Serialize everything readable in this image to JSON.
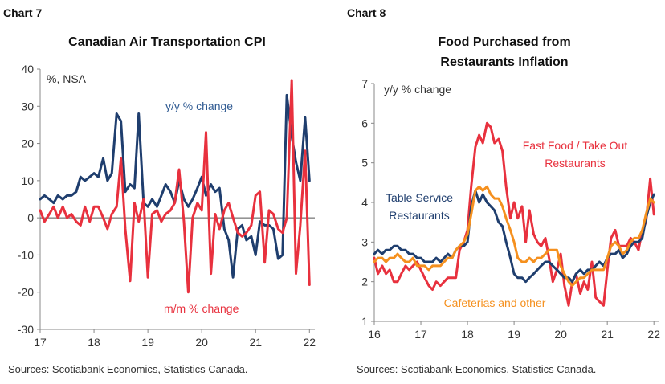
{
  "chart_data": [
    {
      "type": "line",
      "chart_label": "Chart 7",
      "title": "Canadian Air Transportation CPI",
      "unit_label": "%, NSA",
      "source": "Sources: Scotiabank Economics, Statistics Canada.",
      "xlim": [
        2017,
        2022.1
      ],
      "ylim": [
        -30,
        40
      ],
      "x_ticks": [
        {
          "v": 2017,
          "t": "17"
        },
        {
          "v": 2018,
          "t": "18"
        },
        {
          "v": 2019,
          "t": "19"
        },
        {
          "v": 2020,
          "t": "20"
        },
        {
          "v": 2021,
          "t": "21"
        },
        {
          "v": 2022,
          "t": "22"
        }
      ],
      "y_ticks": [
        {
          "v": 40,
          "t": "40"
        },
        {
          "v": 30,
          "t": "30"
        },
        {
          "v": 20,
          "t": "20"
        },
        {
          "v": 10,
          "t": "10"
        },
        {
          "v": 0,
          "t": "0"
        },
        {
          "v": -10,
          "t": "-10"
        },
        {
          "v": -20,
          "t": "-20"
        },
        {
          "v": -30,
          "t": "-30"
        }
      ],
      "zero_line": true,
      "series": [
        {
          "name": "y/y % change",
          "color": "#1f3e6e",
          "x": [
            2017.0,
            2017.08,
            2017.17,
            2017.25,
            2017.33,
            2017.42,
            2017.5,
            2017.58,
            2017.67,
            2017.75,
            2017.83,
            2017.92,
            2018.0,
            2018.08,
            2018.17,
            2018.25,
            2018.33,
            2018.42,
            2018.5,
            2018.58,
            2018.67,
            2018.75,
            2018.83,
            2018.92,
            2019.0,
            2019.08,
            2019.17,
            2019.25,
            2019.33,
            2019.42,
            2019.5,
            2019.58,
            2019.67,
            2019.75,
            2019.83,
            2019.92,
            2020.0,
            2020.08,
            2020.17,
            2020.25,
            2020.33,
            2020.42,
            2020.5,
            2020.58,
            2020.67,
            2020.75,
            2020.83,
            2020.92,
            2021.0,
            2021.08,
            2021.17,
            2021.25,
            2021.33,
            2021.42,
            2021.5,
            2021.58,
            2021.67,
            2021.75,
            2021.83,
            2021.92,
            2022.0
          ],
          "values": [
            5,
            6,
            5,
            4,
            6,
            5,
            6,
            6,
            7,
            11,
            10,
            11,
            12,
            11,
            16,
            10,
            12,
            28,
            26,
            7,
            9,
            8,
            28,
            4,
            3,
            5,
            3,
            6,
            9,
            7,
            4,
            10,
            5,
            3,
            5,
            8,
            11,
            6,
            9,
            7,
            8,
            -3,
            -6,
            -16,
            -3,
            -2,
            -6,
            -5,
            -10,
            -1,
            -2,
            -2,
            -3,
            -11,
            -10,
            33,
            22,
            15,
            10,
            27,
            10
          ]
        },
        {
          "name": "m/m % change",
          "color": "#e8313e",
          "x": [
            2017.0,
            2017.08,
            2017.17,
            2017.25,
            2017.33,
            2017.42,
            2017.5,
            2017.58,
            2017.67,
            2017.75,
            2017.83,
            2017.92,
            2018.0,
            2018.08,
            2018.17,
            2018.25,
            2018.33,
            2018.42,
            2018.5,
            2018.58,
            2018.67,
            2018.75,
            2018.83,
            2018.92,
            2019.0,
            2019.08,
            2019.17,
            2019.25,
            2019.33,
            2019.42,
            2019.5,
            2019.58,
            2019.67,
            2019.75,
            2019.83,
            2019.92,
            2020.0,
            2020.08,
            2020.17,
            2020.25,
            2020.33,
            2020.42,
            2020.5,
            2020.58,
            2020.67,
            2020.75,
            2020.83,
            2020.92,
            2021.0,
            2021.08,
            2021.17,
            2021.25,
            2021.33,
            2021.42,
            2021.5,
            2021.58,
            2021.67,
            2021.75,
            2021.83,
            2021.92,
            2022.0
          ],
          "values": [
            2,
            -1,
            1,
            3,
            0,
            3,
            0,
            1,
            -1,
            -2,
            3,
            -1,
            3,
            3,
            0,
            -3,
            1,
            3,
            16,
            -3,
            -17,
            4,
            -1,
            5,
            -16,
            1,
            2,
            -1,
            1,
            2,
            4,
            13,
            -1,
            -20,
            0,
            4,
            2,
            23,
            -15,
            1,
            -3,
            2,
            4,
            0,
            -4,
            -5,
            -4,
            -2,
            6,
            7,
            -12,
            2,
            1,
            -3,
            -4,
            0,
            37,
            -15,
            -2,
            18,
            -18
          ]
        }
      ],
      "annotations": [
        {
          "text": "y/y % change",
          "color": "#2f5a92"
        },
        {
          "text": "m/m % change",
          "color": "#e8313e"
        }
      ]
    },
    {
      "type": "line",
      "chart_label": "Chart 8",
      "title_lines": [
        "Food Purchased from",
        "Restaurants Inflation"
      ],
      "unit_label": "y/y % change",
      "source": "Sources: Scotiabank Economics, Statistics Canada.",
      "xlim": [
        2016,
        2022.1
      ],
      "ylim": [
        1,
        7
      ],
      "x_ticks": [
        {
          "v": 2016,
          "t": "16"
        },
        {
          "v": 2017,
          "t": "17"
        },
        {
          "v": 2018,
          "t": "18"
        },
        {
          "v": 2019,
          "t": "19"
        },
        {
          "v": 2020,
          "t": "20"
        },
        {
          "v": 2021,
          "t": "21"
        },
        {
          "v": 2022,
          "t": "22"
        }
      ],
      "y_ticks": [
        {
          "v": 7,
          "t": "7"
        },
        {
          "v": 6,
          "t": "6"
        },
        {
          "v": 5,
          "t": "5"
        },
        {
          "v": 4,
          "t": "4"
        },
        {
          "v": 3,
          "t": "3"
        },
        {
          "v": 2,
          "t": "2"
        },
        {
          "v": 1,
          "t": "1"
        }
      ],
      "series": [
        {
          "name": "Fast Food / Take Out Restaurants",
          "color": "#e8313e",
          "x": [
            2016.0,
            2016.08,
            2016.17,
            2016.25,
            2016.33,
            2016.42,
            2016.5,
            2016.58,
            2016.67,
            2016.75,
            2016.83,
            2016.92,
            2017.0,
            2017.08,
            2017.17,
            2017.25,
            2017.33,
            2017.42,
            2017.5,
            2017.58,
            2017.67,
            2017.75,
            2017.83,
            2017.92,
            2018.0,
            2018.08,
            2018.17,
            2018.25,
            2018.33,
            2018.42,
            2018.5,
            2018.58,
            2018.67,
            2018.75,
            2018.83,
            2018.92,
            2019.0,
            2019.08,
            2019.17,
            2019.25,
            2019.33,
            2019.42,
            2019.5,
            2019.58,
            2019.67,
            2019.75,
            2019.83,
            2019.92,
            2020.0,
            2020.08,
            2020.17,
            2020.25,
            2020.33,
            2020.42,
            2020.5,
            2020.58,
            2020.67,
            2020.75,
            2020.83,
            2020.92,
            2021.0,
            2021.08,
            2021.17,
            2021.25,
            2021.33,
            2021.42,
            2021.5,
            2021.58,
            2021.67,
            2021.75,
            2021.83,
            2021.92,
            2022.0
          ],
          "values": [
            2.6,
            2.2,
            2.4,
            2.2,
            2.3,
            2.0,
            2.0,
            2.2,
            2.4,
            2.3,
            2.4,
            2.5,
            2.3,
            2.1,
            1.9,
            1.8,
            2.0,
            1.9,
            2.0,
            2.1,
            2.1,
            2.1,
            2.8,
            3.0,
            3.3,
            4.4,
            5.4,
            5.7,
            5.5,
            6.0,
            5.9,
            5.5,
            5.6,
            5.3,
            4.4,
            3.6,
            4.0,
            3.6,
            3.9,
            3.0,
            3.8,
            3.2,
            3.0,
            2.9,
            3.1,
            2.6,
            2.0,
            2.3,
            2.7,
            1.9,
            1.4,
            2.0,
            2.2,
            1.7,
            2.0,
            1.8,
            2.5,
            1.6,
            1.5,
            1.4,
            2.3,
            3.1,
            3.3,
            2.9,
            2.9,
            2.9,
            3.1,
            3.0,
            2.8,
            3.3,
            3.5,
            4.6,
            3.7
          ]
        },
        {
          "name": "Table Service Restaurants",
          "color": "#1f3e6e",
          "x": [
            2016.0,
            2016.08,
            2016.17,
            2016.25,
            2016.33,
            2016.42,
            2016.5,
            2016.58,
            2016.67,
            2016.75,
            2016.83,
            2016.92,
            2017.0,
            2017.08,
            2017.17,
            2017.25,
            2017.33,
            2017.42,
            2017.5,
            2017.58,
            2017.67,
            2017.75,
            2017.83,
            2017.92,
            2018.0,
            2018.08,
            2018.17,
            2018.25,
            2018.33,
            2018.42,
            2018.5,
            2018.58,
            2018.67,
            2018.75,
            2018.83,
            2018.92,
            2019.0,
            2019.08,
            2019.17,
            2019.25,
            2019.33,
            2019.42,
            2019.5,
            2019.58,
            2019.67,
            2019.75,
            2019.83,
            2019.92,
            2020.0,
            2020.08,
            2020.17,
            2020.25,
            2020.33,
            2020.42,
            2020.5,
            2020.58,
            2020.67,
            2020.75,
            2020.83,
            2020.92,
            2021.0,
            2021.08,
            2021.17,
            2021.25,
            2021.33,
            2021.42,
            2021.5,
            2021.58,
            2021.67,
            2021.75,
            2021.83,
            2021.92,
            2022.0
          ],
          "values": [
            2.7,
            2.8,
            2.7,
            2.8,
            2.8,
            2.9,
            2.9,
            2.8,
            2.8,
            2.7,
            2.7,
            2.6,
            2.6,
            2.5,
            2.5,
            2.5,
            2.6,
            2.5,
            2.6,
            2.7,
            2.6,
            2.8,
            2.9,
            2.9,
            3.0,
            3.9,
            4.3,
            4.0,
            4.2,
            4.0,
            3.9,
            3.8,
            3.5,
            3.4,
            3.0,
            2.6,
            2.2,
            2.1,
            2.1,
            2.0,
            2.1,
            2.2,
            2.3,
            2.4,
            2.5,
            2.5,
            2.4,
            2.3,
            2.2,
            2.1,
            2.1,
            2.0,
            2.2,
            2.3,
            2.2,
            2.3,
            2.3,
            2.4,
            2.5,
            2.4,
            2.6,
            2.7,
            2.7,
            2.8,
            2.6,
            2.7,
            2.9,
            3.0,
            3.0,
            3.1,
            3.6,
            4.0,
            4.2
          ]
        },
        {
          "name": "Cafeterias and other",
          "color": "#f5901e",
          "x": [
            2016.0,
            2016.08,
            2016.17,
            2016.25,
            2016.33,
            2016.42,
            2016.5,
            2016.58,
            2016.67,
            2016.75,
            2016.83,
            2016.92,
            2017.0,
            2017.08,
            2017.17,
            2017.25,
            2017.33,
            2017.42,
            2017.5,
            2017.58,
            2017.67,
            2017.75,
            2017.83,
            2017.92,
            2018.0,
            2018.08,
            2018.17,
            2018.25,
            2018.33,
            2018.42,
            2018.5,
            2018.58,
            2018.67,
            2018.75,
            2018.83,
            2018.92,
            2019.0,
            2019.08,
            2019.17,
            2019.25,
            2019.33,
            2019.42,
            2019.5,
            2019.58,
            2019.67,
            2019.75,
            2019.83,
            2019.92,
            2020.0,
            2020.08,
            2020.17,
            2020.25,
            2020.33,
            2020.42,
            2020.5,
            2020.58,
            2020.67,
            2020.75,
            2020.83,
            2020.92,
            2021.0,
            2021.08,
            2021.17,
            2021.25,
            2021.33,
            2021.42,
            2021.5,
            2021.58,
            2021.67,
            2021.75,
            2021.83,
            2021.92,
            2022.0
          ],
          "values": [
            2.5,
            2.6,
            2.6,
            2.5,
            2.6,
            2.6,
            2.7,
            2.6,
            2.5,
            2.5,
            2.6,
            2.4,
            2.4,
            2.4,
            2.3,
            2.4,
            2.4,
            2.4,
            2.5,
            2.6,
            2.6,
            2.8,
            2.9,
            3.0,
            3.2,
            3.7,
            4.3,
            4.4,
            4.3,
            4.4,
            4.2,
            4.1,
            4.1,
            3.9,
            3.6,
            3.3,
            3.0,
            2.6,
            2.5,
            2.5,
            2.6,
            2.5,
            2.6,
            2.6,
            2.7,
            2.8,
            2.8,
            2.8,
            2.4,
            2.2,
            2.0,
            1.9,
            2.0,
            2.1,
            2.1,
            2.2,
            2.3,
            2.3,
            2.3,
            2.3,
            2.6,
            2.9,
            3.0,
            2.9,
            2.7,
            2.8,
            3.0,
            3.1,
            3.1,
            3.3,
            3.7,
            4.1,
            4.0
          ]
        }
      ],
      "annotations": [
        {
          "text": "Fast Food / Take Out",
          "color": "#e8313e"
        },
        {
          "text": "Restaurants",
          "color": "#e8313e"
        },
        {
          "text": "Table Service",
          "color": "#1f3e6e"
        },
        {
          "text": "Restaurants",
          "color": "#1f3e6e"
        },
        {
          "text": "Cafeterias and other",
          "color": "#f5901e"
        }
      ]
    }
  ]
}
